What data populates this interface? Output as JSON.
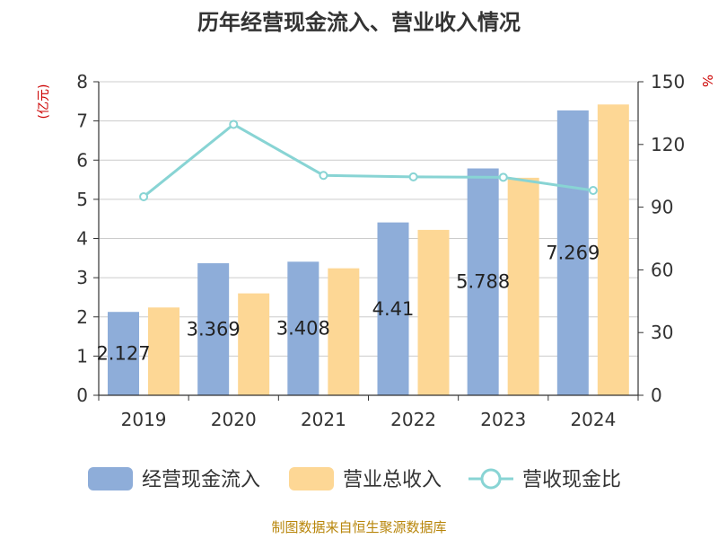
{
  "chart_data": {
    "type": "bar",
    "title": "历年经营现金流入、营业收入情况",
    "left_axis_unit": "(亿元)",
    "right_axis_unit": "%",
    "categories": [
      "2019",
      "2020",
      "2021",
      "2022",
      "2023",
      "2024"
    ],
    "series": [
      {
        "name": "经营现金流入",
        "kind": "bar",
        "axis": "left",
        "color": "#8eadd9",
        "values": [
          2.127,
          3.369,
          3.408,
          4.41,
          5.788,
          7.269
        ],
        "labels": [
          "2.127",
          "3.369",
          "3.408",
          "4.41",
          "5.788",
          "7.269"
        ]
      },
      {
        "name": "营业总收入",
        "kind": "bar",
        "axis": "left",
        "color": "#fdd795",
        "values": [
          2.24,
          2.6,
          3.24,
          4.22,
          5.55,
          7.42
        ]
      },
      {
        "name": "营收现金比",
        "kind": "line",
        "axis": "right",
        "color": "#88d4d4",
        "values": [
          95,
          129.6,
          105.2,
          104.5,
          104.3,
          98
        ]
      }
    ],
    "left_axis": {
      "min": 0,
      "max": 8,
      "ticks": [
        "0",
        "1",
        "2",
        "3",
        "4",
        "5",
        "6",
        "7",
        "8"
      ]
    },
    "right_axis": {
      "min": 0,
      "max": 150,
      "ticks": [
        "0",
        "30",
        "60",
        "90",
        "120",
        "150"
      ]
    },
    "grid": true,
    "legend_position": "bottom"
  },
  "footer": {
    "source": "制图数据来自恒生聚源数据库"
  },
  "colors": {
    "title": "#333333",
    "axis_unit": "#cc0000",
    "axis": "#333333",
    "grid": "#cccccc",
    "footer": "#b8860b"
  }
}
